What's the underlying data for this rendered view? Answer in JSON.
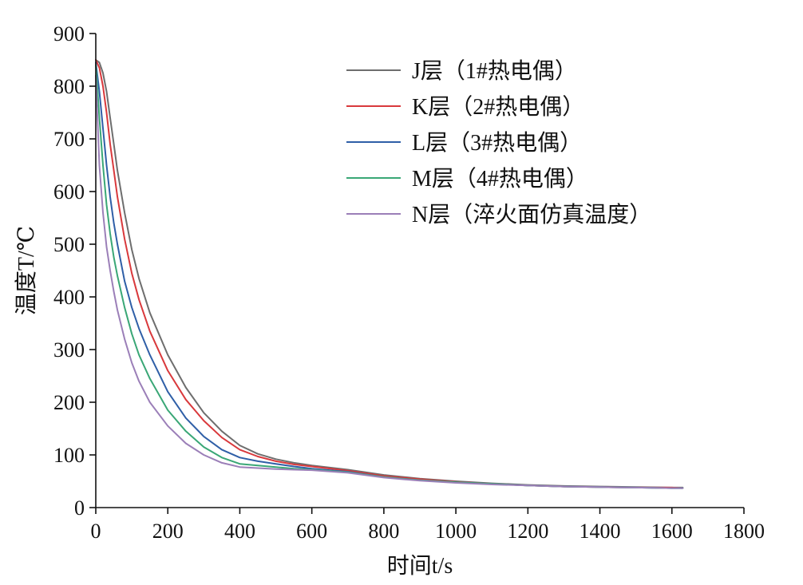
{
  "chart_data": {
    "type": "line",
    "xlabel": "时间t/s",
    "ylabel": "温度T/℃",
    "xlim": [
      0,
      1800
    ],
    "ylim": [
      0,
      900
    ],
    "xticks": [
      "0",
      "200",
      "400",
      "600",
      "800",
      "1000",
      "1200",
      "1400",
      "1600",
      "1800"
    ],
    "yticks": [
      "0",
      "100",
      "200",
      "300",
      "400",
      "500",
      "600",
      "700",
      "800",
      "900"
    ],
    "legend_position": "top-right",
    "grid": false,
    "series": [
      {
        "name": "J层（1#热电偶）",
        "color": "#6e6e6e",
        "points": [
          [
            0,
            850
          ],
          [
            10,
            845
          ],
          [
            20,
            825
          ],
          [
            30,
            790
          ],
          [
            40,
            740
          ],
          [
            50,
            690
          ],
          [
            60,
            640
          ],
          [
            80,
            560
          ],
          [
            100,
            490
          ],
          [
            120,
            435
          ],
          [
            150,
            370
          ],
          [
            200,
            290
          ],
          [
            250,
            228
          ],
          [
            300,
            180
          ],
          [
            350,
            145
          ],
          [
            400,
            118
          ],
          [
            450,
            102
          ],
          [
            500,
            92
          ],
          [
            550,
            85
          ],
          [
            600,
            80
          ],
          [
            700,
            72
          ],
          [
            800,
            62
          ],
          [
            900,
            55
          ],
          [
            1000,
            50
          ],
          [
            1100,
            46
          ],
          [
            1200,
            43
          ],
          [
            1300,
            41
          ],
          [
            1400,
            40
          ],
          [
            1500,
            39
          ],
          [
            1600,
            38
          ],
          [
            1630,
            38
          ]
        ]
      },
      {
        "name": "K层（2#热电偶）",
        "color": "#d9393c",
        "points": [
          [
            0,
            850
          ],
          [
            10,
            835
          ],
          [
            20,
            800
          ],
          [
            30,
            750
          ],
          [
            40,
            690
          ],
          [
            50,
            640
          ],
          [
            60,
            590
          ],
          [
            80,
            510
          ],
          [
            100,
            445
          ],
          [
            120,
            395
          ],
          [
            150,
            335
          ],
          [
            200,
            260
          ],
          [
            250,
            205
          ],
          [
            300,
            165
          ],
          [
            350,
            133
          ],
          [
            400,
            110
          ],
          [
            450,
            97
          ],
          [
            500,
            88
          ],
          [
            550,
            82
          ],
          [
            600,
            78
          ],
          [
            700,
            70
          ],
          [
            800,
            60
          ],
          [
            900,
            54
          ],
          [
            1000,
            49
          ],
          [
            1100,
            45
          ],
          [
            1200,
            42
          ],
          [
            1300,
            40
          ],
          [
            1400,
            39
          ],
          [
            1500,
            38
          ],
          [
            1600,
            38
          ],
          [
            1630,
            37
          ]
        ]
      },
      {
        "name": "L层（3#热电偶）",
        "color": "#2f5fa7",
        "points": [
          [
            0,
            845
          ],
          [
            10,
            790
          ],
          [
            20,
            720
          ],
          [
            30,
            650
          ],
          [
            40,
            590
          ],
          [
            50,
            540
          ],
          [
            60,
            500
          ],
          [
            80,
            430
          ],
          [
            100,
            380
          ],
          [
            120,
            340
          ],
          [
            150,
            290
          ],
          [
            200,
            220
          ],
          [
            250,
            170
          ],
          [
            300,
            135
          ],
          [
            350,
            110
          ],
          [
            400,
            95
          ],
          [
            450,
            88
          ],
          [
            500,
            83
          ],
          [
            550,
            78
          ],
          [
            600,
            74
          ],
          [
            700,
            68
          ],
          [
            800,
            58
          ],
          [
            900,
            52
          ],
          [
            1000,
            48
          ],
          [
            1100,
            45
          ],
          [
            1200,
            42
          ],
          [
            1300,
            40
          ],
          [
            1400,
            39
          ],
          [
            1500,
            38
          ],
          [
            1600,
            37
          ],
          [
            1630,
            37
          ]
        ]
      },
      {
        "name": "M层（4#热电偶）",
        "color": "#3aa776",
        "points": [
          [
            0,
            840
          ],
          [
            10,
            740
          ],
          [
            20,
            650
          ],
          [
            30,
            575
          ],
          [
            40,
            520
          ],
          [
            50,
            475
          ],
          [
            60,
            440
          ],
          [
            80,
            380
          ],
          [
            100,
            330
          ],
          [
            120,
            290
          ],
          [
            150,
            245
          ],
          [
            200,
            185
          ],
          [
            250,
            145
          ],
          [
            300,
            115
          ],
          [
            350,
            95
          ],
          [
            400,
            83
          ],
          [
            450,
            80
          ],
          [
            500,
            77
          ],
          [
            550,
            74
          ],
          [
            600,
            72
          ],
          [
            700,
            67
          ],
          [
            800,
            58
          ],
          [
            900,
            52
          ],
          [
            1000,
            48
          ],
          [
            1100,
            45
          ],
          [
            1200,
            42
          ],
          [
            1300,
            40
          ],
          [
            1400,
            39
          ],
          [
            1500,
            38
          ],
          [
            1600,
            37
          ],
          [
            1630,
            37
          ]
        ]
      },
      {
        "name": "N层（淬火面仿真温度）",
        "color": "#9b7fb8",
        "points": [
          [
            0,
            820
          ],
          [
            10,
            650
          ],
          [
            20,
            560
          ],
          [
            30,
            495
          ],
          [
            40,
            450
          ],
          [
            50,
            410
          ],
          [
            60,
            375
          ],
          [
            80,
            320
          ],
          [
            100,
            275
          ],
          [
            120,
            240
          ],
          [
            150,
            200
          ],
          [
            200,
            155
          ],
          [
            250,
            122
          ],
          [
            300,
            100
          ],
          [
            350,
            85
          ],
          [
            400,
            77
          ],
          [
            450,
            75
          ],
          [
            500,
            73
          ],
          [
            550,
            72
          ],
          [
            600,
            71
          ],
          [
            700,
            66
          ],
          [
            800,
            57
          ],
          [
            900,
            51
          ],
          [
            1000,
            47
          ],
          [
            1100,
            44
          ],
          [
            1200,
            42
          ],
          [
            1300,
            40
          ],
          [
            1400,
            39
          ],
          [
            1500,
            38
          ],
          [
            1600,
            37
          ],
          [
            1630,
            37
          ]
        ]
      }
    ]
  }
}
